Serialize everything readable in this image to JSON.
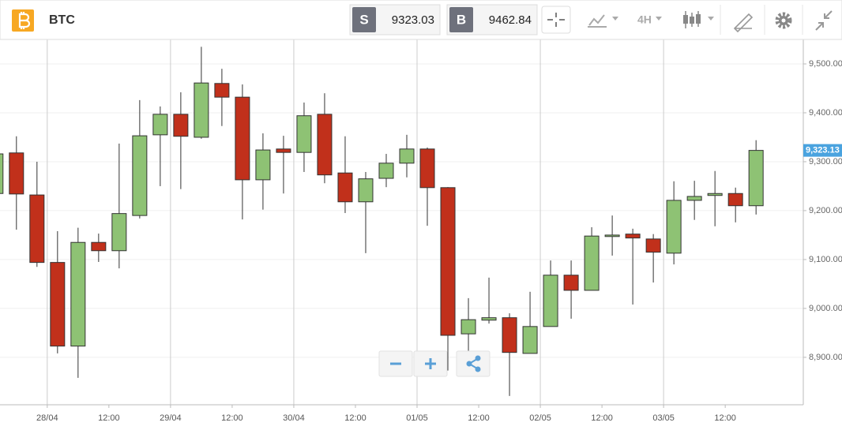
{
  "toolbar": {
    "symbol": "BTC",
    "sell_label": "S",
    "sell_price": "9323.03",
    "buy_label": "B",
    "buy_price": "9462.84",
    "interval": "4H"
  },
  "chart_data": {
    "type": "candlestick",
    "x": [
      0,
      1,
      2,
      3,
      4,
      5,
      6,
      7,
      8,
      9,
      10,
      11,
      12,
      13,
      14,
      15,
      16,
      17,
      18,
      19,
      20,
      21,
      22,
      23,
      24,
      25,
      26,
      27,
      28,
      29,
      30,
      31,
      32,
      33,
      34,
      35,
      36,
      37
    ],
    "open": [
      9235,
      9318,
      9232,
      9094,
      8923,
      9135,
      9118,
      9190,
      9355,
      9397,
      9350,
      9460,
      9432,
      9263,
      9326,
      9319,
      9397,
      9277,
      9218,
      9266,
      9297,
      9326,
      9247,
      8948,
      8976,
      8981,
      8908,
      8963,
      9068,
      9037,
      9147,
      9152,
      9142,
      9113,
      9221,
      9231,
      9235,
      9210
    ],
    "high": [
      9324,
      9352,
      9300,
      9158,
      9165,
      9153,
      9337,
      9426,
      9413,
      9442,
      9535,
      9490,
      9458,
      9358,
      9353,
      9421,
      9440,
      9352,
      9279,
      9316,
      9355,
      9329,
      9248,
      9021,
      9063,
      8990,
      9034,
      9098,
      9098,
      9166,
      9190,
      9163,
      9152,
      9260,
      9261,
      9281,
      9247,
      9344
    ],
    "low": [
      9227,
      9161,
      9085,
      8908,
      8858,
      9095,
      9082,
      9184,
      9250,
      9244,
      9347,
      9373,
      9182,
      9202,
      9235,
      9279,
      9256,
      9195,
      9113,
      9248,
      9268,
      9169,
      8873,
      8913,
      8969,
      8821,
      8908,
      8963,
      8979,
      9037,
      9108,
      9008,
      9053,
      9090,
      9181,
      9168,
      9176,
      9192
    ],
    "close": [
      9316,
      9234,
      9094,
      8923,
      9135,
      9118,
      9194,
      9353,
      9397,
      9352,
      9461,
      9432,
      9263,
      9324,
      9319,
      9394,
      9273,
      9218,
      9265,
      9297,
      9326,
      9247,
      8945,
      8977,
      8981,
      8910,
      8963,
      9068,
      9037,
      9148,
      9150,
      9144,
      9115,
      9221,
      9229,
      9235,
      9210,
      9323.13
    ],
    "up_color": "#8ec274",
    "down_color": "#c1301b",
    "xlim": [
      0.2,
      39.3
    ],
    "xticks": [
      {
        "value": 2.5,
        "label": "28/04"
      },
      {
        "value": 5.5,
        "label": "12:00"
      },
      {
        "value": 8.5,
        "label": "29/04"
      },
      {
        "value": 11.5,
        "label": "12:00"
      },
      {
        "value": 14.5,
        "label": "30/04"
      },
      {
        "value": 17.5,
        "label": "12:00"
      },
      {
        "value": 20.5,
        "label": "01/05"
      },
      {
        "value": 23.5,
        "label": "12:00"
      },
      {
        "value": 26.5,
        "label": "02/05"
      },
      {
        "value": 29.5,
        "label": "12:00"
      },
      {
        "value": 32.5,
        "label": "03/05"
      },
      {
        "value": 35.5,
        "label": "12:00"
      }
    ],
    "ylim": [
      8803,
      9550
    ],
    "yticks": [
      {
        "value": 8900,
        "label": "8,900.00"
      },
      {
        "value": 9000,
        "label": "9,000.00"
      },
      {
        "value": 9100,
        "label": "9,100.00"
      },
      {
        "value": 9200,
        "label": "9,200.00"
      },
      {
        "value": 9300,
        "label": "9,300.00"
      },
      {
        "value": 9400,
        "label": "9,400.00"
      },
      {
        "value": 9500,
        "label": "9,500.00"
      }
    ],
    "last_price": {
      "value": 9323.13,
      "label": "9,323.13"
    },
    "grid": true
  }
}
